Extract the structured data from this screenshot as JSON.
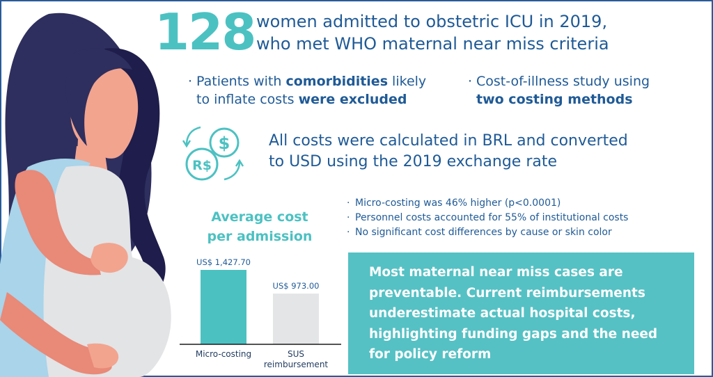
{
  "headline": {
    "number": "128",
    "line1": "women admitted to obstetric ICU in 2019,",
    "line2": "who met WHO maternal near miss criteria"
  },
  "bullets": {
    "left": {
      "line1_pre": "Patients with ",
      "line1_bold": "comorbidities",
      "line1_post": " likely",
      "line2_pre": "to inflate costs ",
      "line2_bold": "were excluded"
    },
    "right": {
      "line1": "Cost-of-illness study using",
      "line2_bold": "two costing methods"
    }
  },
  "conversion": {
    "icon_name": "currency-exchange-icon",
    "icon_labels": [
      "$",
      "R$"
    ],
    "line1": "All costs were calculated in BRL and converted",
    "line2": "to USD using the 2019 exchange rate"
  },
  "findings": [
    "Micro-costing was 46% higher (p<0.0001)",
    "Personnel costs accounted for 55% of institutional costs",
    "No significant cost differences by cause or skin color"
  ],
  "chart_data": {
    "type": "bar",
    "title": "Average cost per admission",
    "title_lines": [
      "Average cost",
      "per admission"
    ],
    "categories": [
      "Micro-costing",
      "SUS reimbursement"
    ],
    "category_lines": [
      [
        "Micro-costing"
      ],
      [
        "SUS",
        "reimbursement"
      ]
    ],
    "values": [
      1427.7,
      973.0
    ],
    "value_labels": [
      "US$ 1,427.70",
      "US$ 973.00"
    ],
    "colors": [
      "#4cc1c2",
      "#e4e5e6"
    ],
    "ylim": [
      0,
      1427.7
    ],
    "grid": false
  },
  "callout": {
    "lines": [
      "Most maternal near miss cases are",
      "preventable. Current reimbursements",
      "underestimate actual hospital costs,",
      "highlighting funding gaps and the need",
      "for policy reform"
    ]
  },
  "colors": {
    "accent": "#4cc1c2",
    "navy": "#1f5a96",
    "callout_bg": "#55c1c4",
    "hair": "#2e2f5e",
    "hair_dark": "#1e1d4b",
    "skin": "#f2a48f",
    "dress": "#e3e4e6",
    "shawl": "#a9d4ea"
  }
}
